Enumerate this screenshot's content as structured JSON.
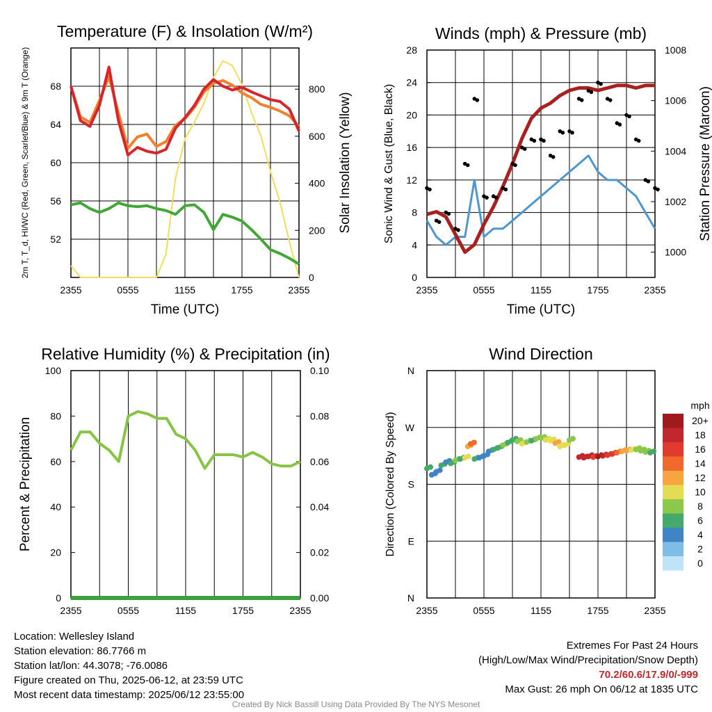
{
  "colors": {
    "temp": "#d7262b",
    "dewpoint": "#40a835",
    "heat_index": "#3a9d3a",
    "temp9m": "#f08030",
    "solar": "#f5dc5a",
    "wind": "#4c96d2",
    "gust": "#000000",
    "pressure": "#a8211f",
    "rh": "#88c443",
    "precip": "#3ea042",
    "grid": "#000000"
  },
  "chart_data": [
    {
      "id": "temp",
      "type": "line",
      "title": "Temperature (F) & Insolation (W/m²)",
      "xlabel": "Time (UTC)",
      "ylabel": "2m T, T_d, HI/WC (Red, Green, Scarlet/Blue) & 9m T (Orange)",
      "y2label": "Solar Insolation (Yellow)",
      "x_ticks": [
        "2355",
        "0555",
        "1155",
        "1755",
        "2355"
      ],
      "ylim": [
        48,
        72
      ],
      "y_ticks": [
        52,
        56,
        60,
        64,
        68
      ],
      "y2lim": [
        0,
        975
      ],
      "y2_ticks": [
        0,
        200,
        400,
        600,
        800
      ],
      "x_hours": [
        0,
        1,
        2,
        3,
        4,
        5,
        6,
        7,
        8,
        9,
        10,
        11,
        12,
        13,
        14,
        15,
        16,
        17,
        18,
        19,
        20,
        21,
        22,
        23,
        24
      ],
      "series": [
        {
          "key": "temp9m",
          "axis": "y",
          "width": 4,
          "values": [
            68.0,
            64.8,
            64.2,
            66.5,
            69.0,
            65.2,
            61.5,
            62.7,
            63.0,
            61.7,
            62.2,
            63.9,
            64.6,
            65.8,
            67.4,
            68.3,
            68.6,
            68.1,
            67.3,
            66.8,
            66.1,
            65.8,
            65.4,
            64.9,
            63.8
          ]
        },
        {
          "key": "temp",
          "axis": "y",
          "width": 4,
          "values": [
            68.0,
            64.4,
            63.8,
            66.0,
            70.0,
            64.4,
            60.8,
            61.6,
            61.2,
            61.0,
            61.4,
            63.6,
            64.7,
            66.0,
            67.7,
            68.7,
            68.0,
            67.6,
            67.9,
            67.4,
            67.0,
            66.6,
            66.4,
            65.6,
            63.3
          ]
        },
        {
          "key": "dewpoint",
          "axis": "y",
          "width": 4,
          "values": [
            55.6,
            55.8,
            55.2,
            54.8,
            55.2,
            55.8,
            55.5,
            55.4,
            55.5,
            55.2,
            55.0,
            54.6,
            55.5,
            55.6,
            54.8,
            53.0,
            54.6,
            54.3,
            53.9,
            53.0,
            52.0,
            50.9,
            50.5,
            50.0,
            49.4
          ]
        },
        {
          "key": "solar",
          "axis": "y2",
          "width": 2,
          "values": [
            50,
            0,
            0,
            0,
            0,
            0,
            0,
            0,
            0,
            0,
            100,
            420,
            590,
            660,
            740,
            850,
            920,
            900,
            820,
            700,
            600,
            450,
            320,
            150,
            0
          ]
        }
      ]
    },
    {
      "id": "wind",
      "type": "line",
      "title": "Winds (mph) & Pressure (mb)",
      "xlabel": "Time (UTC)",
      "ylabel": "Sonic Wind & Gust (Blue, Black)",
      "y2label": "Station Pressure (Maroon)",
      "x_ticks": [
        "2355",
        "0555",
        "1155",
        "1755",
        "2355"
      ],
      "ylim": [
        0,
        28
      ],
      "y_ticks": [
        0,
        4,
        8,
        12,
        16,
        20,
        24,
        28
      ],
      "y2lim": [
        999,
        1008
      ],
      "y2_ticks": [
        1000,
        1002,
        1004,
        1006,
        1008
      ],
      "x_hours": [
        0,
        1,
        2,
        3,
        4,
        5,
        6,
        7,
        8,
        9,
        10,
        11,
        12,
        13,
        14,
        15,
        16,
        17,
        18,
        19,
        20,
        21,
        22,
        23,
        24
      ],
      "series": [
        {
          "key": "wind",
          "axis": "y",
          "width": 3,
          "values": [
            7,
            5,
            4,
            5,
            5,
            12,
            5,
            6,
            6,
            7,
            8,
            9,
            10,
            11,
            12,
            13,
            14,
            15,
            13,
            12,
            12,
            11,
            10,
            8,
            6
          ]
        },
        {
          "key": "pressure",
          "axis": "y2",
          "width": 5,
          "values": [
            1001.5,
            1001.6,
            1001.4,
            1000.7,
            1000.0,
            1000.3,
            1001.1,
            1001.8,
            1002.6,
            1003.5,
            1004.5,
            1005.3,
            1005.7,
            1005.9,
            1006.2,
            1006.4,
            1006.5,
            1006.5,
            1006.4,
            1006.5,
            1006.6,
            1006.6,
            1006.5,
            1006.6,
            1006.6
          ]
        },
        {
          "key": "gust",
          "axis": "y",
          "type": "scatter",
          "values": [
            11,
            7,
            8,
            6,
            14,
            22,
            10,
            10,
            11,
            14,
            16,
            17,
            17,
            15,
            18,
            18,
            22,
            23,
            24,
            22,
            19,
            20,
            17,
            12,
            11
          ]
        }
      ]
    },
    {
      "id": "rh",
      "type": "line",
      "title": "Relative Humidity (%) & Precipitation (in)",
      "xlabel": "",
      "ylabel": "Percent & Precipitation",
      "x_ticks": [
        "2355",
        "0555",
        "1155",
        "1755",
        "2355"
      ],
      "ylim": [
        0,
        100
      ],
      "y_ticks": [
        0,
        20,
        40,
        60,
        80,
        100
      ],
      "y2lim": [
        0,
        0.1
      ],
      "y2_ticks": [
        "0.00",
        "0.02",
        "0.04",
        "0.06",
        "0.08",
        "0.10"
      ],
      "x_hours": [
        0,
        1,
        2,
        3,
        4,
        5,
        6,
        7,
        8,
        9,
        10,
        11,
        12,
        13,
        14,
        15,
        16,
        17,
        18,
        19,
        20,
        21,
        22,
        23,
        24
      ],
      "series": [
        {
          "key": "rh",
          "axis": "y",
          "width": 4,
          "values": [
            65,
            73,
            73,
            68,
            65,
            60,
            80,
            82,
            81,
            79,
            79,
            72,
            70,
            65,
            57,
            63,
            63,
            63,
            62,
            64,
            62,
            59,
            58,
            58,
            60
          ]
        },
        {
          "key": "precip",
          "axis": "y2",
          "width": 6,
          "values": [
            0,
            0,
            0,
            0,
            0,
            0,
            0,
            0,
            0,
            0,
            0,
            0,
            0,
            0,
            0,
            0,
            0,
            0,
            0,
            0,
            0,
            0,
            0,
            0,
            0
          ]
        }
      ]
    },
    {
      "id": "wdir",
      "type": "scatter",
      "title": "Wind Direction",
      "xlabel": "",
      "ylabel": "Direction (Colored By Speed)",
      "x_ticks": [
        "2355",
        "0555",
        "1155",
        "1755",
        "2355"
      ],
      "ylim": [
        0,
        360
      ],
      "y_ticks": [
        "N",
        "E",
        "S",
        "W",
        "N"
      ],
      "points": [
        {
          "h": 0.0,
          "deg": 205,
          "mph": 5
        },
        {
          "h": 0.5,
          "deg": 195,
          "mph": 3
        },
        {
          "h": 1.0,
          "deg": 200,
          "mph": 4
        },
        {
          "h": 1.5,
          "deg": 210,
          "mph": 5
        },
        {
          "h": 2.0,
          "deg": 215,
          "mph": 4
        },
        {
          "h": 2.5,
          "deg": 213,
          "mph": 6
        },
        {
          "h": 3.0,
          "deg": 218,
          "mph": 7
        },
        {
          "h": 3.5,
          "deg": 220,
          "mph": 5
        },
        {
          "h": 4.0,
          "deg": 222,
          "mph": 10
        },
        {
          "h": 4.3,
          "deg": 240,
          "mph": 12
        },
        {
          "h": 4.6,
          "deg": 244,
          "mph": 13
        },
        {
          "h": 5.0,
          "deg": 220,
          "mph": 6
        },
        {
          "h": 5.5,
          "deg": 222,
          "mph": 4
        },
        {
          "h": 6.0,
          "deg": 225,
          "mph": 3
        },
        {
          "h": 6.5,
          "deg": 232,
          "mph": 4
        },
        {
          "h": 7.0,
          "deg": 235,
          "mph": 5
        },
        {
          "h": 7.5,
          "deg": 238,
          "mph": 6
        },
        {
          "h": 8.0,
          "deg": 242,
          "mph": 7
        },
        {
          "h": 8.5,
          "deg": 246,
          "mph": 6
        },
        {
          "h": 9.0,
          "deg": 250,
          "mph": 5
        },
        {
          "h": 9.5,
          "deg": 248,
          "mph": 8
        },
        {
          "h": 10.0,
          "deg": 244,
          "mph": 9
        },
        {
          "h": 10.5,
          "deg": 247,
          "mph": 7
        },
        {
          "h": 11.0,
          "deg": 249,
          "mph": 6
        },
        {
          "h": 11.5,
          "deg": 252,
          "mph": 8
        },
        {
          "h": 12.0,
          "deg": 253,
          "mph": 7
        },
        {
          "h": 12.5,
          "deg": 250,
          "mph": 9
        },
        {
          "h": 13.0,
          "deg": 249,
          "mph": 10
        },
        {
          "h": 13.5,
          "deg": 245,
          "mph": 11
        },
        {
          "h": 14.0,
          "deg": 240,
          "mph": 10
        },
        {
          "h": 14.5,
          "deg": 242,
          "mph": 9
        },
        {
          "h": 15.0,
          "deg": 250,
          "mph": 8
        },
        {
          "h": 16.0,
          "deg": 223,
          "mph": 18
        },
        {
          "h": 16.5,
          "deg": 222,
          "mph": 17
        },
        {
          "h": 17.0,
          "deg": 224,
          "mph": 18
        },
        {
          "h": 17.5,
          "deg": 223,
          "mph": 16
        },
        {
          "h": 18.0,
          "deg": 224,
          "mph": 19
        },
        {
          "h": 18.5,
          "deg": 225,
          "mph": 17
        },
        {
          "h": 19.0,
          "deg": 226,
          "mph": 16
        },
        {
          "h": 19.5,
          "deg": 228,
          "mph": 15
        },
        {
          "h": 20.0,
          "deg": 230,
          "mph": 13
        },
        {
          "h": 20.5,
          "deg": 232,
          "mph": 12
        },
        {
          "h": 21.0,
          "deg": 233,
          "mph": 11
        },
        {
          "h": 21.5,
          "deg": 234,
          "mph": 10
        },
        {
          "h": 22.0,
          "deg": 235,
          "mph": 8
        },
        {
          "h": 22.5,
          "deg": 233,
          "mph": 7
        },
        {
          "h": 23.0,
          "deg": 231,
          "mph": 8
        },
        {
          "h": 23.5,
          "deg": 230,
          "mph": 6
        }
      ],
      "colorbar": {
        "title": "mph",
        "labels": [
          "20+",
          "18",
          "16",
          "14",
          "12",
          "10",
          "8",
          "6",
          "4",
          "2",
          "0"
        ],
        "colors": [
          "#9e1a1d",
          "#c0282d",
          "#e03b2c",
          "#f06a2b",
          "#f8a441",
          "#e5dc55",
          "#8cc84b",
          "#44a96b",
          "#3f85c6",
          "#80bde6",
          "#bfe3f8"
        ]
      }
    }
  ],
  "info": {
    "location": "Location: Wellesley Island",
    "elevation": "Station elevation: 86.7766 m",
    "latlon": "Station lat/lon: 44.3078; -76.0086",
    "created": "Figure created on Thu, 2025-06-12, at 23:59 UTC",
    "recent": "Most recent data timestamp: 2025/06/12 23:55:00"
  },
  "extremes": {
    "title": "Extremes For Past 24 Hours",
    "subtitle": "(High/Low/Max Wind/Precipitation/Snow Depth)",
    "values": "70.2/60.6/17.9/0/-999",
    "gust": "Max Gust: 26 mph On 06/12 at 1835 UTC"
  },
  "credit": "Created By Nick Bassill Using Data Provided By The NYS Mesonet"
}
